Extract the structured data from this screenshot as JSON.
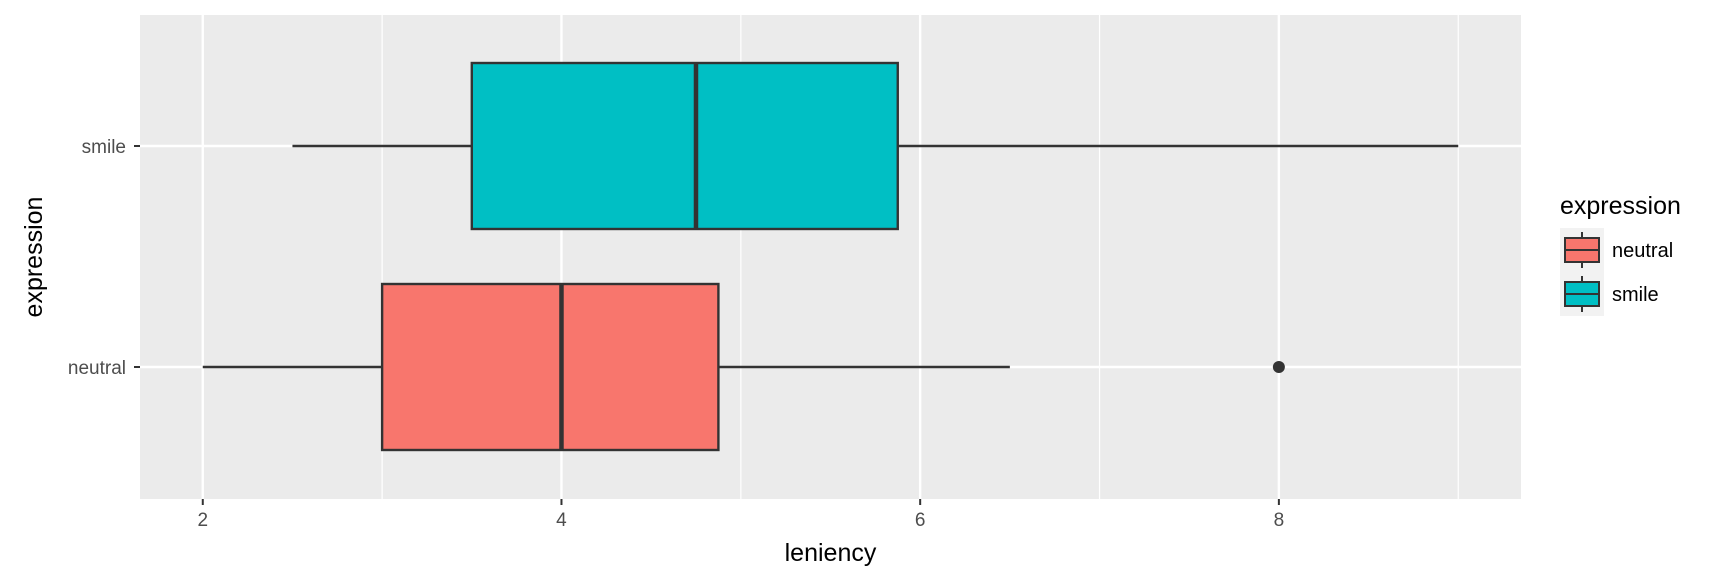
{
  "chart_data": {
    "type": "boxplot",
    "orientation": "horizontal",
    "title": "",
    "xlabel": "leniency",
    "ylabel": "expression",
    "xlim": [
      1.65,
      9.35
    ],
    "xticks": [
      2,
      4,
      6,
      8
    ],
    "grid": true,
    "legend": {
      "title": "expression",
      "position": "right"
    },
    "categories": [
      "neutral",
      "smile"
    ],
    "series": [
      {
        "name": "neutral",
        "color": "#F8766D",
        "min": 2.0,
        "q1": 3.0,
        "median": 4.0,
        "q3": 4.875,
        "max": 6.5,
        "outliers": [
          8.0
        ]
      },
      {
        "name": "smile",
        "color": "#00BFC4",
        "min": 2.5,
        "q1": 3.5,
        "median": 4.75,
        "q3": 5.875,
        "max": 9.0,
        "outliers": []
      }
    ]
  }
}
